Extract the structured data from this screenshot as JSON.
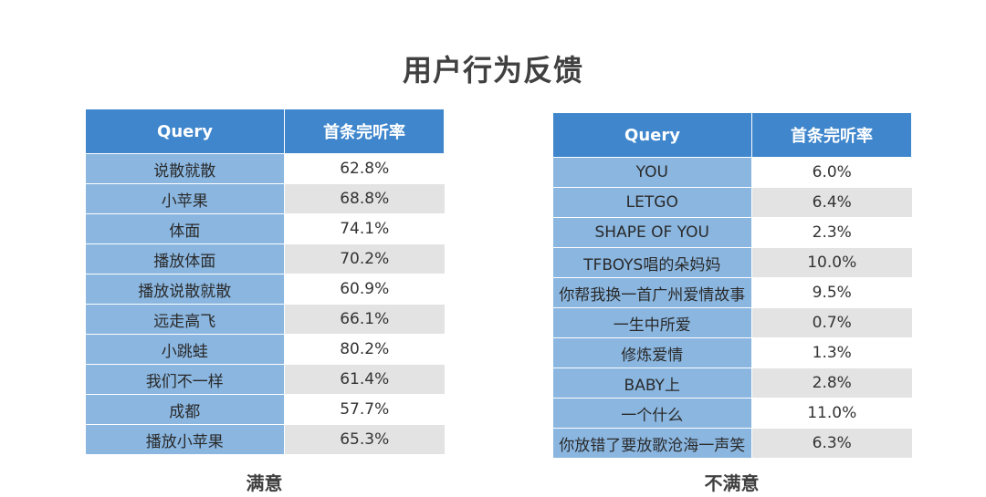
{
  "title": "用户行为反馈",
  "satisfied": {
    "caption": "满意",
    "headers": [
      "Query",
      "首条完听率"
    ],
    "rows": [
      {
        "query": "说散就散",
        "rate": "62.8%"
      },
      {
        "query": "小苹果",
        "rate": "68.8%"
      },
      {
        "query": "体面",
        "rate": "74.1%"
      },
      {
        "query": "播放体面",
        "rate": "70.2%"
      },
      {
        "query": "播放说散就散",
        "rate": "60.9%"
      },
      {
        "query": "远走高飞",
        "rate": "66.1%"
      },
      {
        "query": "小跳蛙",
        "rate": "80.2%"
      },
      {
        "query": "我们不一样",
        "rate": "61.4%"
      },
      {
        "query": "成都",
        "rate": "57.7%"
      },
      {
        "query": "播放小苹果",
        "rate": "65.3%"
      }
    ]
  },
  "unsatisfied": {
    "caption": "不满意",
    "headers": [
      "Query",
      "首条完听率"
    ],
    "rows": [
      {
        "query": "YOU",
        "rate": "6.0%"
      },
      {
        "query": "LETGO",
        "rate": "6.4%"
      },
      {
        "query": "SHAPE OF YOU",
        "rate": "2.3%"
      },
      {
        "query": "TFBOYS唱的朵妈妈",
        "rate": "10.0%"
      },
      {
        "query": "你帮我换一首广州爱情故事",
        "rate": "9.5%"
      },
      {
        "query": "一生中所爱",
        "rate": "0.7%"
      },
      {
        "query": "修炼爱情",
        "rate": "1.3%"
      },
      {
        "query": "BABY上",
        "rate": "2.8%"
      },
      {
        "query": "一个什么",
        "rate": "11.0%"
      },
      {
        "query": "你放错了要放歌沧海一声笑",
        "rate": "6.3%"
      }
    ]
  },
  "colors": {
    "header_bg": "#3f86cc",
    "query_bg": "#8ab6e0",
    "row_alt_bg": "#e3e3e3"
  }
}
